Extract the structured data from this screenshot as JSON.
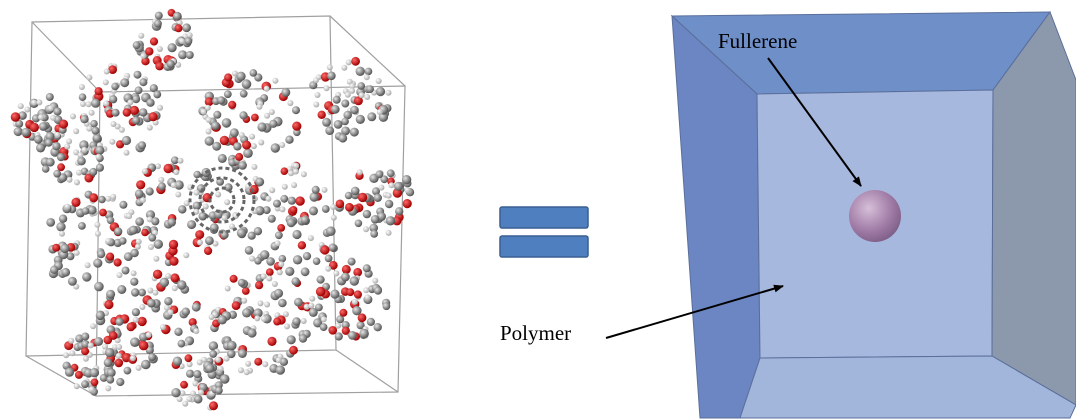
{
  "labels": {
    "fullerene": "Fullerene",
    "polymer": "Polymer"
  }
}
